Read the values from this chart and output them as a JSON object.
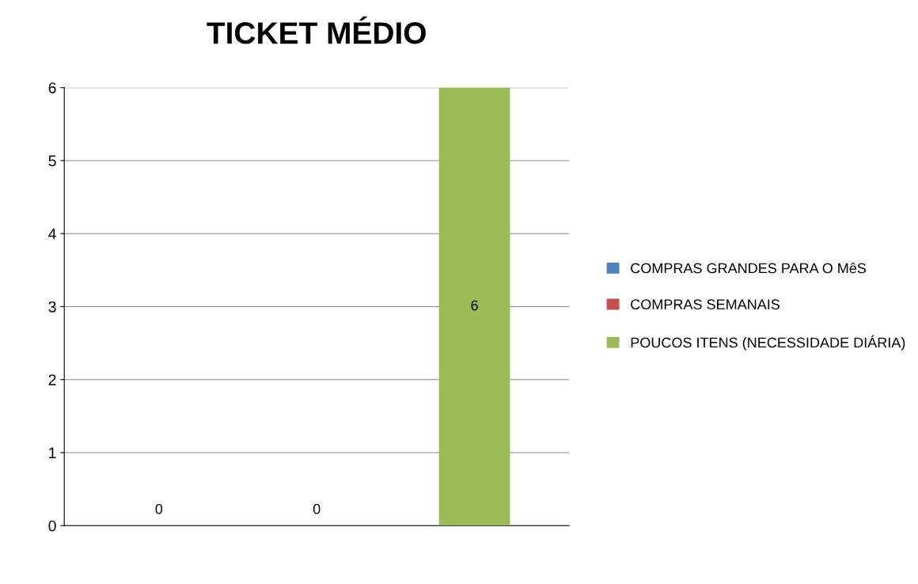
{
  "chart_data": {
    "type": "bar",
    "title": "TICKET MÉDIO",
    "categories": [
      null,
      null,
      null
    ],
    "series": [
      {
        "name": "COMPRAS GRANDES PARA O MêS",
        "color": "#4f81bd",
        "values": [
          0,
          null,
          null
        ]
      },
      {
        "name": "COMPRAS SEMANAIS",
        "color": "#c0504d",
        "values": [
          null,
          0,
          null
        ]
      },
      {
        "name": "POUCOS ITENS (NECESSIDADE DIÁRIA)",
        "color": "#9bbb59",
        "values": [
          null,
          null,
          6
        ]
      }
    ],
    "ylim": [
      0,
      6
    ],
    "yticks": [
      0,
      1,
      2,
      3,
      4,
      5,
      6
    ],
    "grid": "y",
    "legend": "right",
    "data_labels": true
  }
}
